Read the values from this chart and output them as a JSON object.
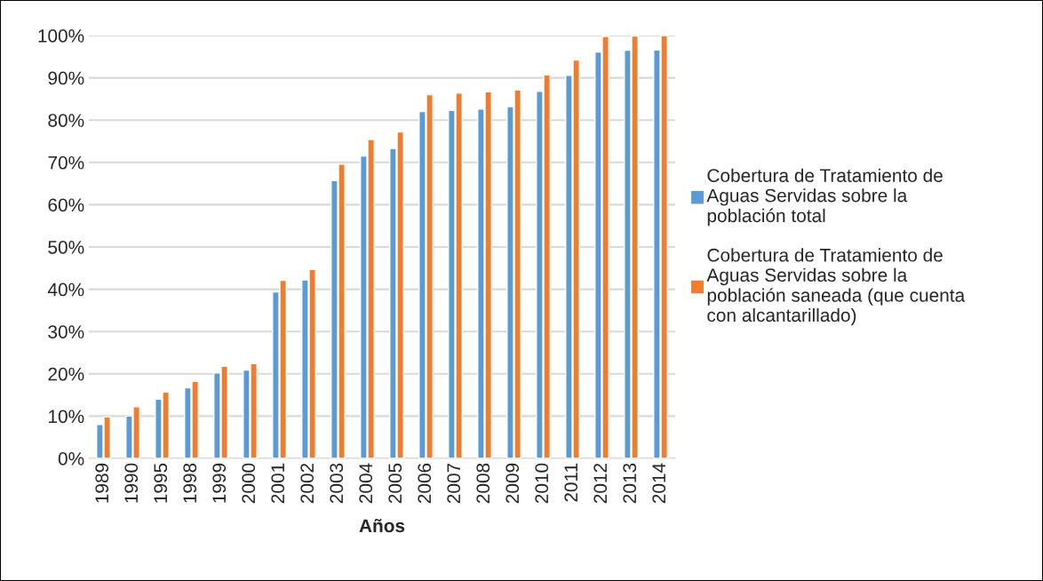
{
  "chart_data": {
    "type": "bar",
    "xlabel": "Años",
    "categories": [
      "1989",
      "1990",
      "1995",
      "1998",
      "1999",
      "2000",
      "2001",
      "2002",
      "2003",
      "2004",
      "2005",
      "2006",
      "2007",
      "2008",
      "2009",
      "2010",
      "2011",
      "2012",
      "2013",
      "2014"
    ],
    "series": [
      {
        "name": "Cobertura de Tratamiento de\nAguas Servidas sobre la\npoblación total",
        "color": "#5b9bd5",
        "values": [
          8.0,
          10.0,
          14.0,
          16.7,
          20.2,
          20.9,
          39.4,
          42.2,
          65.7,
          71.5,
          73.3,
          82.0,
          82.3,
          82.6,
          83.2,
          86.8,
          90.6,
          96.1,
          96.5,
          96.6
        ]
      },
      {
        "name": "Cobertura de Tratamiento de\nAguas Servidas sobre la\npoblación saneada (que cuenta\ncon alcantarillado)",
        "color": "#ed7d31",
        "values": [
          9.8,
          12.2,
          15.7,
          18.2,
          21.8,
          22.4,
          42.1,
          44.7,
          69.6,
          75.4,
          77.2,
          86.0,
          86.4,
          86.7,
          87.1,
          90.7,
          94.2,
          99.8,
          99.9,
          100.0
        ]
      }
    ],
    "ylim": [
      0,
      100
    ],
    "yticks": [
      {
        "value": 0,
        "label": "0%"
      },
      {
        "value": 10,
        "label": "10%"
      },
      {
        "value": 20,
        "label": "20%"
      },
      {
        "value": 30,
        "label": "30%"
      },
      {
        "value": 40,
        "label": "40%"
      },
      {
        "value": 50,
        "label": "50%"
      },
      {
        "value": 60,
        "label": "60%"
      },
      {
        "value": 70,
        "label": "70%"
      },
      {
        "value": 80,
        "label": "80%"
      },
      {
        "value": 90,
        "label": "90%"
      },
      {
        "value": 100,
        "label": "100%"
      }
    ],
    "grid": "y",
    "legend": "right"
  }
}
